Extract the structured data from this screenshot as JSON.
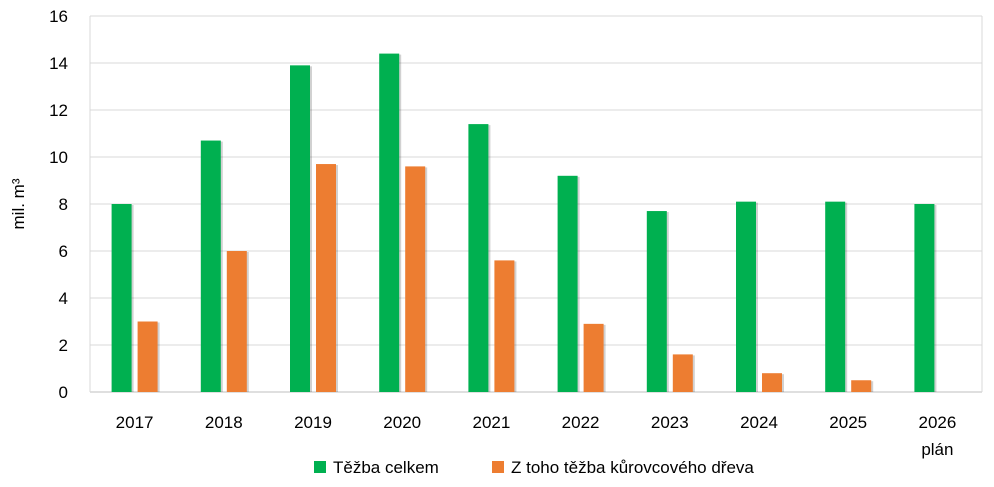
{
  "chart_data": {
    "type": "bar",
    "categories": [
      "2017",
      "2018",
      "2019",
      "2020",
      "2021",
      "2022",
      "2023",
      "2024",
      "2025",
      "2026"
    ],
    "category_sublabels": [
      "",
      "",
      "",
      "",
      "",
      "",
      "",
      "",
      "",
      "plán"
    ],
    "series": [
      {
        "name": "Těžba celkem",
        "color": "#00b050",
        "values": [
          8.0,
          10.7,
          13.9,
          14.4,
          11.4,
          9.2,
          7.7,
          8.1,
          8.1,
          8.0
        ]
      },
      {
        "name": "Z toho těžba kůrovcového dřeva",
        "color": "#ed7d31",
        "values": [
          3.0,
          6.0,
          9.7,
          9.6,
          5.6,
          2.9,
          1.6,
          0.8,
          0.5,
          null
        ]
      }
    ],
    "title": "",
    "xlabel": "",
    "ylabel": "mil. m³",
    "ylim": [
      0,
      16
    ],
    "yticks": [
      0,
      2,
      4,
      6,
      8,
      10,
      12,
      14,
      16
    ],
    "grid": true,
    "legend": "bottom"
  }
}
